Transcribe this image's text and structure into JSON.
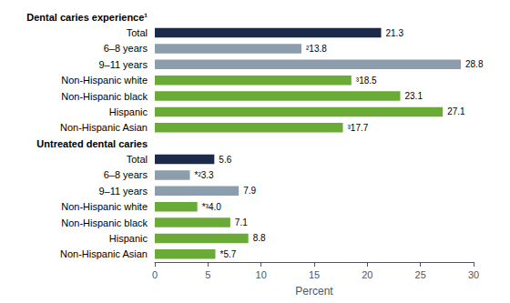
{
  "chart_data": {
    "type": "bar",
    "orientation": "horizontal",
    "xlabel": "Percent",
    "categories": [
      "Dental caries experience¹",
      "Total",
      "6–8 years",
      "9–11 years",
      "Non-Hispanic white",
      "Non-Hispanic black",
      "Hispanic",
      "Non-Hispanic Asian",
      "Untreated dental caries",
      "Total",
      "6–8 years",
      "9–11 years",
      "Non-Hispanic white",
      "Non-Hispanic black",
      "Hispanic",
      "Non-Hispanic Asian"
    ],
    "values": [
      null,
      21.3,
      13.8,
      28.8,
      18.5,
      23.1,
      27.1,
      17.7,
      null,
      5.6,
      3.3,
      7.9,
      4.0,
      7.1,
      8.8,
      5.7
    ],
    "value_labels": [
      null,
      "21.3",
      "²13.8",
      "28.8",
      "³18.5",
      "23.1",
      "27.1",
      "³17.7",
      null,
      "5.6",
      "*²3.3",
      "7.9",
      "*³4.0",
      "7.1",
      "8.8",
      "*5.7"
    ],
    "colors": [
      null,
      "#1b2a4a",
      "#8c9dae",
      "#8c9dae",
      "#6aaa36",
      "#6aaa36",
      "#6aaa36",
      "#6aaa36",
      null,
      "#1b2a4a",
      "#8c9dae",
      "#8c9dae",
      "#6aaa36",
      "#6aaa36",
      "#6aaa36",
      "#6aaa36"
    ],
    "xlim": [
      0,
      30
    ],
    "xticks": [
      0,
      5,
      10,
      15,
      20,
      25,
      30
    ],
    "grid": false,
    "data_labels": true
  }
}
